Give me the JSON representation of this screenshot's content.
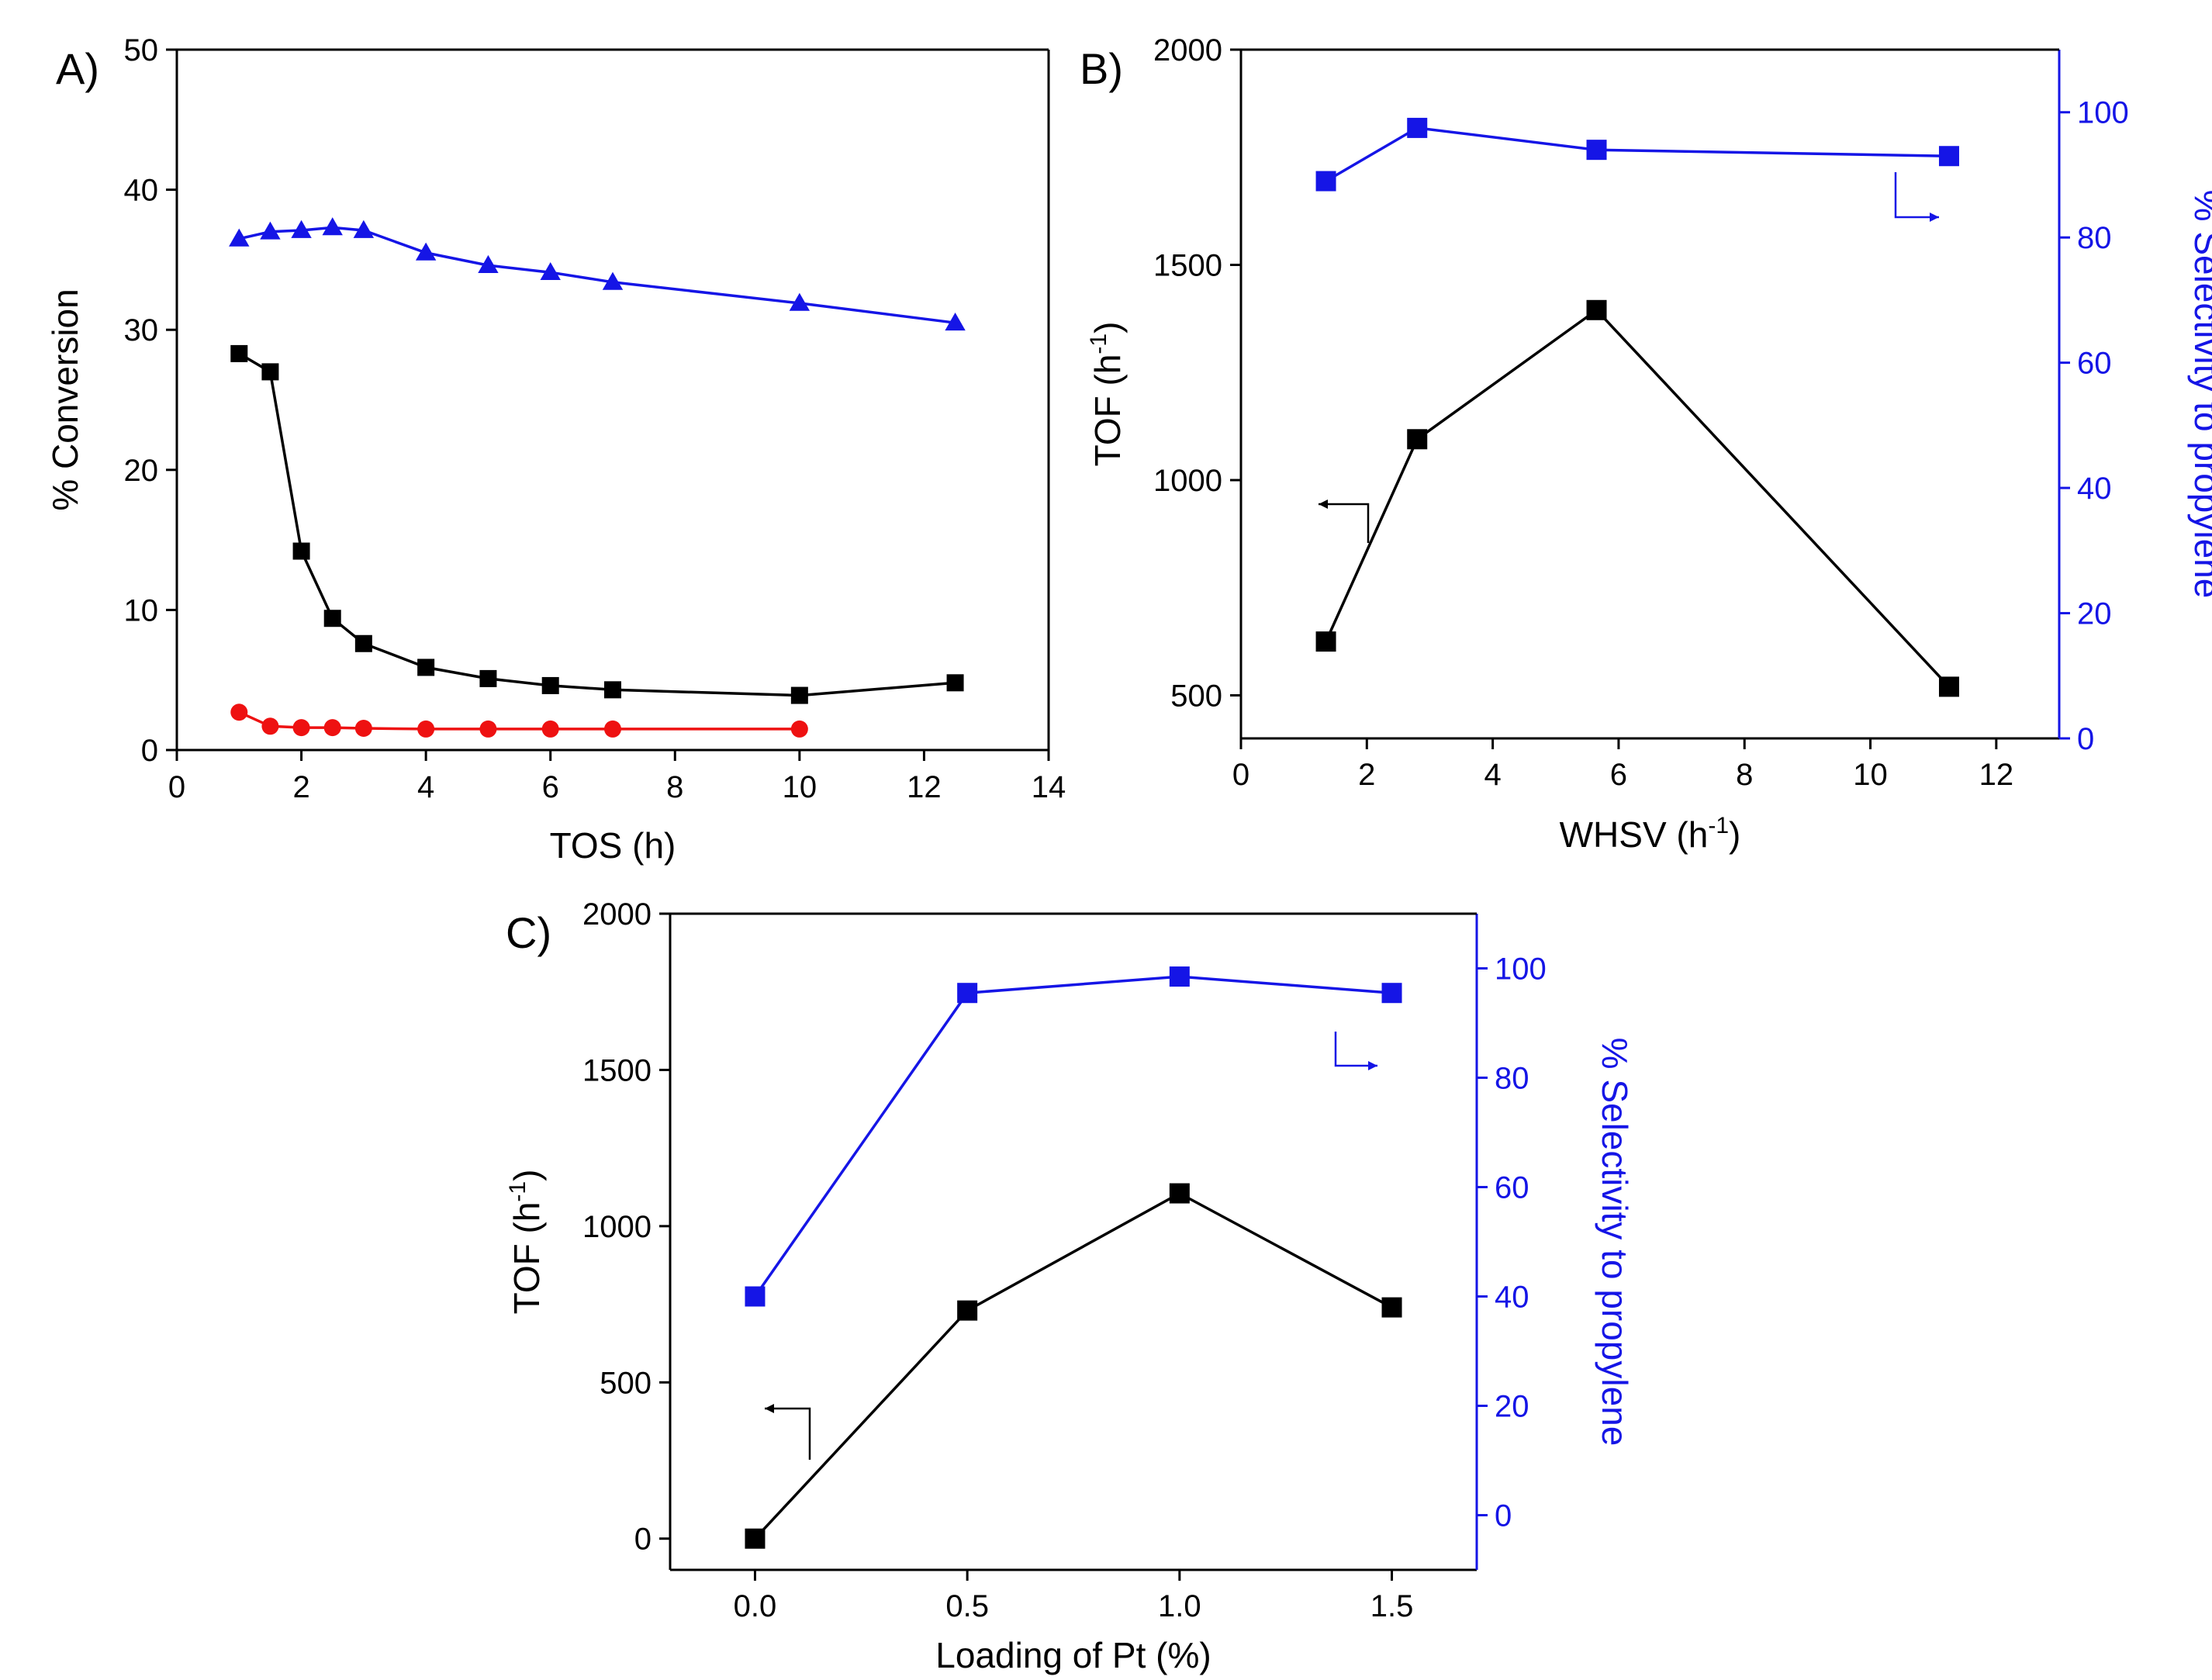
{
  "chart_data": [
    {
      "panel": "A)",
      "type": "line",
      "xlabel": "TOS (h)",
      "ylabel": "% Conversion",
      "xlim": [
        0,
        14
      ],
      "ylim": [
        0,
        50
      ],
      "xticks": [
        0,
        2,
        4,
        6,
        8,
        10,
        12,
        14
      ],
      "yticks": [
        0,
        10,
        20,
        30,
        40,
        50
      ],
      "colors": {
        "axis": "#000000",
        "black": "#000000",
        "red": "#ee1111",
        "blue": "#1515e6"
      },
      "series": [
        {
          "name": "black-squares",
          "marker": "square",
          "color": "#000000",
          "x": [
            1,
            1.5,
            2,
            2.5,
            3,
            4,
            5,
            6,
            7,
            10,
            12.5
          ],
          "y": [
            28.3,
            27.0,
            14.2,
            9.4,
            7.6,
            5.9,
            5.1,
            4.6,
            4.3,
            3.9,
            4.8
          ]
        },
        {
          "name": "red-circles",
          "marker": "circle",
          "color": "#ee1111",
          "x": [
            1,
            1.5,
            2,
            2.5,
            3,
            4,
            5,
            6,
            7,
            10
          ],
          "y": [
            2.7,
            1.7,
            1.6,
            1.6,
            1.55,
            1.5,
            1.5,
            1.5,
            1.5,
            1.5
          ]
        },
        {
          "name": "blue-triangles",
          "marker": "triangle",
          "color": "#1515e6",
          "x": [
            1,
            1.5,
            2,
            2.5,
            3,
            4,
            5,
            6,
            7,
            10,
            12.5
          ],
          "y": [
            36.5,
            37.0,
            37.1,
            37.3,
            37.1,
            35.5,
            34.6,
            34.1,
            33.4,
            31.9,
            30.5
          ]
        }
      ]
    },
    {
      "panel": "B)",
      "type": "line",
      "xlabel": "WHSV (h",
      "xlabel_sup": "-1",
      "xlabel_end": ")",
      "ylabel": "TOF (h",
      "ylabel_sup": "-1",
      "ylabel_end": ")",
      "y2label": "% Selectivity to propylene",
      "xlim": [
        0,
        13
      ],
      "ylim": [
        400,
        2000
      ],
      "y2lim": [
        0,
        110
      ],
      "xticks": [
        0,
        2,
        4,
        6,
        8,
        10,
        12
      ],
      "yticks": [
        500,
        1000,
        1500,
        2000
      ],
      "y2ticks": [
        0,
        20,
        40,
        60,
        80,
        100
      ],
      "colors": {
        "axis": "#000000",
        "tof": "#000000",
        "selectivity": "#1515e6"
      },
      "series": [
        {
          "name": "TOF",
          "axis": "left",
          "color": "#000000",
          "x": [
            1.35,
            2.8,
            5.65,
            11.25
          ],
          "y": [
            625,
            1095,
            1395,
            520
          ]
        },
        {
          "name": "Selectivity",
          "axis": "right",
          "color": "#1515e6",
          "x": [
            1.35,
            2.8,
            5.65,
            11.25
          ],
          "y": [
            89,
            97.5,
            94,
            93
          ]
        }
      ]
    },
    {
      "panel": "C)",
      "type": "line",
      "xlabel": "Loading of Pt (%)",
      "ylabel": "TOF (h",
      "ylabel_sup": "-1",
      "ylabel_end": ")",
      "y2label": "% Selectivity to propylene",
      "xlim": [
        -0.2,
        1.7
      ],
      "ylim": [
        -100,
        2000
      ],
      "y2lim": [
        -10,
        110
      ],
      "xticks": [
        "0.0",
        "0.5",
        "1.0",
        "1.5"
      ],
      "yticks": [
        0,
        500,
        1000,
        1500,
        2000
      ],
      "y2ticks": [
        0,
        20,
        40,
        60,
        80,
        100
      ],
      "colors": {
        "axis": "#000000",
        "tof": "#000000",
        "selectivity": "#1515e6"
      },
      "series": [
        {
          "name": "TOF",
          "axis": "left",
          "color": "#000000",
          "x": [
            0.0,
            0.5,
            1.0,
            1.5
          ],
          "y": [
            0,
            730,
            1105,
            740
          ]
        },
        {
          "name": "Selectivity",
          "axis": "right",
          "color": "#1515e6",
          "x": [
            0.0,
            0.5,
            1.0,
            1.5
          ],
          "y": [
            40,
            95.5,
            98.5,
            95.5
          ]
        }
      ]
    }
  ]
}
